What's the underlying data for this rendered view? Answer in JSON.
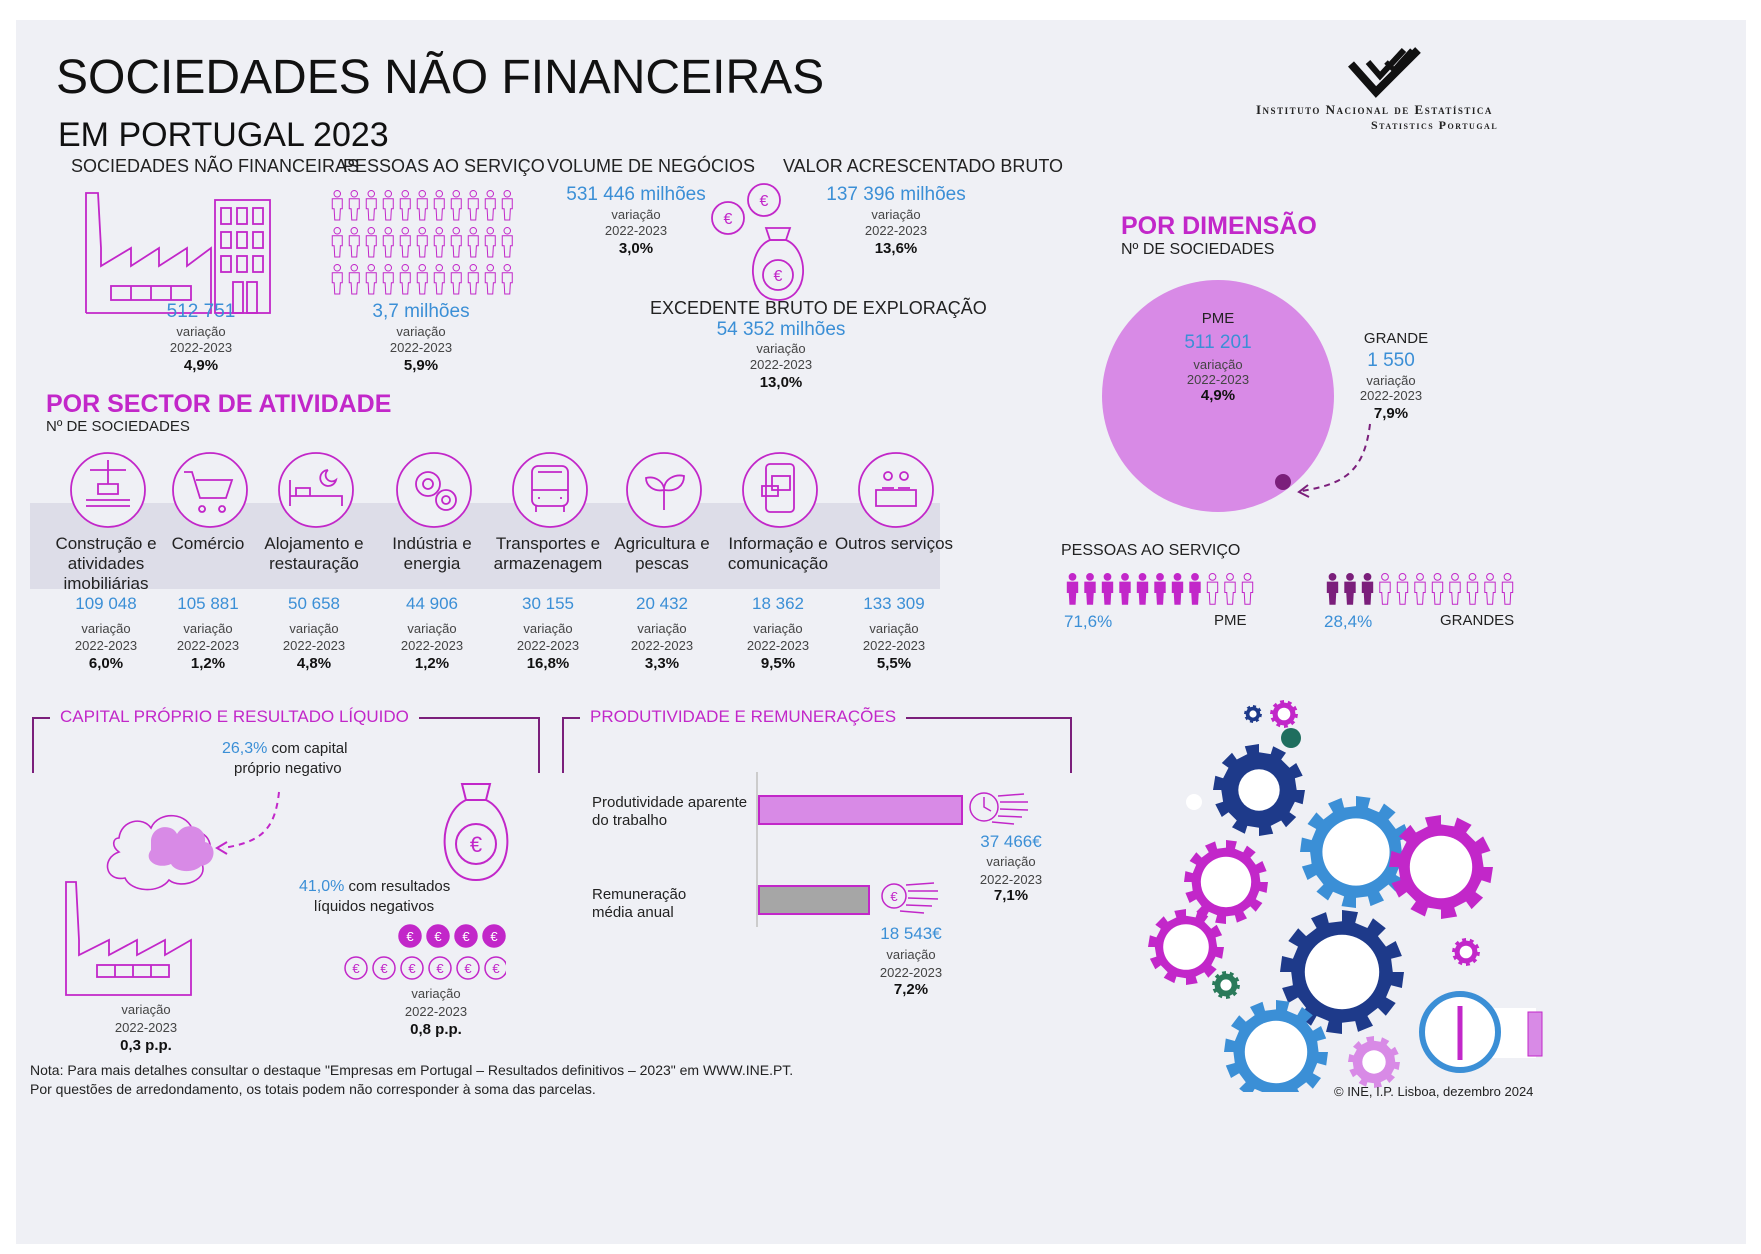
{
  "header": {
    "title": "SOCIEDADES NÃO FINANCEIRAS",
    "subtitle": "EM PORTUGAL 2023",
    "org_name": "Instituto Nacional de Estatística",
    "org_sub": "Statistics Portugal"
  },
  "variation_label": "variação",
  "period": "2022-2023",
  "kpis": {
    "sociedades": {
      "label": "SOCIEDADES NÃO FINANCEIRAS",
      "value": "512 751",
      "change": "4,9%"
    },
    "pessoas": {
      "label": "PESSOAS AO SERVIÇO",
      "value": "3,7 milhões",
      "change": "5,9%"
    },
    "volume": {
      "label": "VOLUME DE NEGÓCIOS",
      "value": "531 446 milhões",
      "change": "3,0%"
    },
    "vab": {
      "label": "VALOR ACRESCENTADO BRUTO",
      "value": "137 396 milhões",
      "change": "13,6%"
    },
    "ebe": {
      "label": "EXCEDENTE BRUTO DE EXPLORAÇÃO",
      "value": "54 352 milhões",
      "change": "13,0%"
    }
  },
  "sector": {
    "title": "POR SECTOR DE ATIVIDADE",
    "subtitle": "Nº DE SOCIEDADES",
    "items": [
      {
        "name": "Construção e atividades imobiliárias",
        "value": "109 048",
        "change": "6,0%",
        "icon": "crane-icon"
      },
      {
        "name": "Comércio",
        "value": "105 881",
        "change": "1,2%",
        "icon": "cart-icon"
      },
      {
        "name": "Alojamento e restauração",
        "value": "50 658",
        "change": "4,8%",
        "icon": "bed-icon"
      },
      {
        "name": "Indústria e energia",
        "value": "44 906",
        "change": "1,2%",
        "icon": "gears-icon"
      },
      {
        "name": "Transportes e armazenagem",
        "value": "30 155",
        "change": "16,8%",
        "icon": "bus-icon"
      },
      {
        "name": "Agricultura e pescas",
        "value": "20 432",
        "change": "3,3%",
        "icon": "plant-icon"
      },
      {
        "name": "Informação e comunicação",
        "value": "18 362",
        "change": "9,5%",
        "icon": "phone-icon"
      },
      {
        "name": "Outros serviços",
        "value": "133 309",
        "change": "5,5%",
        "icon": "people-desk-icon"
      }
    ]
  },
  "dimension": {
    "title": "POR DIMENSÃO",
    "subtitle": "Nº DE SOCIEDADES",
    "pme_label": "PME",
    "pme_value": "511 201",
    "pme_change": "4,9%",
    "grande_label": "GRANDE",
    "grande_value": "1 550",
    "grande_change": "7,9%"
  },
  "persons": {
    "title": "PESSOAS AO SERVIÇO",
    "pme_share": "71,6%",
    "pme_label": "PME",
    "pme_fraction": 0.716,
    "grandes_share": "28,4%",
    "grandes_label": "GRANDES",
    "grandes_fraction": 0.284
  },
  "capital": {
    "title": "CAPITAL PRÓPRIO E RESULTADO LÍQUIDO",
    "neg_equity_pct": "26,3%",
    "neg_equity_text1": "com capital",
    "neg_equity_text2": "próprio negativo",
    "neg_equity_change": "0,3 p.p.",
    "neg_result_pct": "41,0%",
    "neg_result_text1": "com resultados",
    "neg_result_text2": "líquidos negativos",
    "neg_result_change": "0,8 p.p."
  },
  "produtividade": {
    "title": "PRODUTIVIDADE E REMUNERAÇÕES",
    "prod_label1": "Produtividade aparente",
    "prod_label2": "do trabalho",
    "prod_value": "37 466€",
    "prod_change": "7,1%",
    "rem_label1": "Remuneração",
    "rem_label2": "média anual",
    "rem_value": "18 543€",
    "rem_change": "7,2%"
  },
  "footer": {
    "note1": "Nota: Para mais detalhes consultar o destaque \"Empresas em Portugal – Resultados definitivos – 2023\" em WWW.INE.PT.",
    "note2": "Por questões de arredondamento, os totais podem não corresponder à soma das parcelas.",
    "copyright": "© INE, I.P. Lisboa, dezembro 2024"
  },
  "colors": {
    "magenta": "#c227c9",
    "purple": "#7b1f7b",
    "blue": "#3b8fd6",
    "pie": "#d88ae6",
    "navy": "#1e3a8a",
    "band": "#dddde8"
  }
}
